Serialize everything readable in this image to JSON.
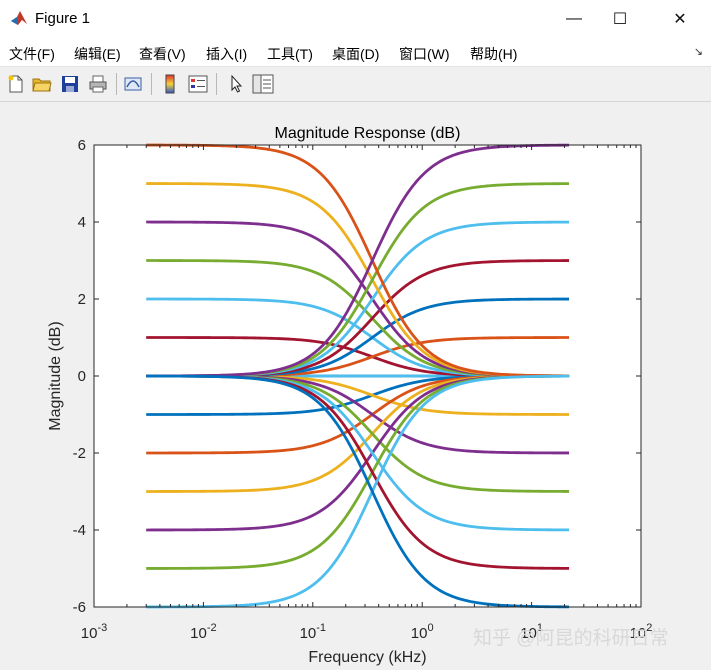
{
  "window": {
    "title": "Figure 1",
    "minimize": "—",
    "maximize": "☐",
    "close": "✕"
  },
  "menu": {
    "items": [
      "文件(F)",
      "编辑(E)",
      "查看(V)",
      "插入(I)",
      "工具(T)",
      "桌面(D)",
      "窗口(W)",
      "帮助(H)"
    ],
    "more": "↘"
  },
  "toolbar": {
    "buttons": [
      "new-figure",
      "open-file",
      "save",
      "print",
      "link-plot",
      "insert-colorbar",
      "insert-legend",
      "edit-plot",
      "property-inspector"
    ]
  },
  "watermark": "知乎 @阿昆的科研日常",
  "colors": [
    "#0072BD",
    "#D95319",
    "#EDB120",
    "#7E2F8E",
    "#77AC30",
    "#4DBEEE",
    "#A2142F"
  ],
  "chart_data": {
    "type": "line",
    "title": "Magnitude Response (dB)",
    "xlabel": "Frequency (kHz)",
    "ylabel": "Magnitude (dB)",
    "xscale": "log",
    "xlim": [
      0.001,
      100
    ],
    "ylim": [
      -6,
      6
    ],
    "xticks": [
      0.001,
      0.01,
      0.1,
      1,
      10,
      100
    ],
    "xtick_labels": [
      [
        "10",
        "-3"
      ],
      [
        "10",
        "-2"
      ],
      [
        "10",
        "-1"
      ],
      [
        "10",
        "0"
      ],
      [
        "10",
        "1"
      ],
      [
        "10",
        "2"
      ]
    ],
    "yticks": [
      -6,
      -4,
      -2,
      0,
      2,
      4,
      6
    ],
    "ytick_labels": [
      "-6",
      "-4",
      "-2",
      "0",
      "2",
      "4",
      "6"
    ],
    "grid": false,
    "freq_range_khz": [
      0.003,
      22
    ],
    "series": [
      {
        "type": "low_shelf",
        "gain_db": 6,
        "color": "#D95319"
      },
      {
        "type": "low_shelf",
        "gain_db": 5,
        "color": "#EDB120"
      },
      {
        "type": "low_shelf",
        "gain_db": 4,
        "color": "#7E2F8E"
      },
      {
        "type": "low_shelf",
        "gain_db": 3,
        "color": "#77AC30"
      },
      {
        "type": "low_shelf",
        "gain_db": 2,
        "color": "#4DBEEE"
      },
      {
        "type": "low_shelf",
        "gain_db": 1,
        "color": "#A2142F"
      },
      {
        "type": "low_shelf",
        "gain_db": 0,
        "color": "#0072BD"
      },
      {
        "type": "low_shelf",
        "gain_db": -1,
        "color": "#0072BD"
      },
      {
        "type": "low_shelf",
        "gain_db": -2,
        "color": "#D95319"
      },
      {
        "type": "low_shelf",
        "gain_db": -3,
        "color": "#EDB120"
      },
      {
        "type": "low_shelf",
        "gain_db": -4,
        "color": "#7E2F8E"
      },
      {
        "type": "low_shelf",
        "gain_db": -5,
        "color": "#77AC30"
      },
      {
        "type": "low_shelf",
        "gain_db": -6,
        "color": "#4DBEEE"
      },
      {
        "type": "high_shelf",
        "gain_db": 6,
        "color": "#7E2F8E"
      },
      {
        "type": "high_shelf",
        "gain_db": 5,
        "color": "#77AC30"
      },
      {
        "type": "high_shelf",
        "gain_db": 4,
        "color": "#4DBEEE"
      },
      {
        "type": "high_shelf",
        "gain_db": 3,
        "color": "#A2142F"
      },
      {
        "type": "high_shelf",
        "gain_db": 2,
        "color": "#0072BD"
      },
      {
        "type": "high_shelf",
        "gain_db": 1,
        "color": "#D95319"
      },
      {
        "type": "high_shelf",
        "gain_db": 0,
        "color": "#4DBEEE"
      },
      {
        "type": "high_shelf",
        "gain_db": -1,
        "color": "#EDB120"
      },
      {
        "type": "high_shelf",
        "gain_db": -2,
        "color": "#7E2F8E"
      },
      {
        "type": "high_shelf",
        "gain_db": -3,
        "color": "#77AC30"
      },
      {
        "type": "high_shelf",
        "gain_db": -4,
        "color": "#4DBEEE"
      },
      {
        "type": "high_shelf",
        "gain_db": -5,
        "color": "#A2142F"
      },
      {
        "type": "high_shelf",
        "gain_db": -6,
        "color": "#0072BD"
      }
    ]
  }
}
